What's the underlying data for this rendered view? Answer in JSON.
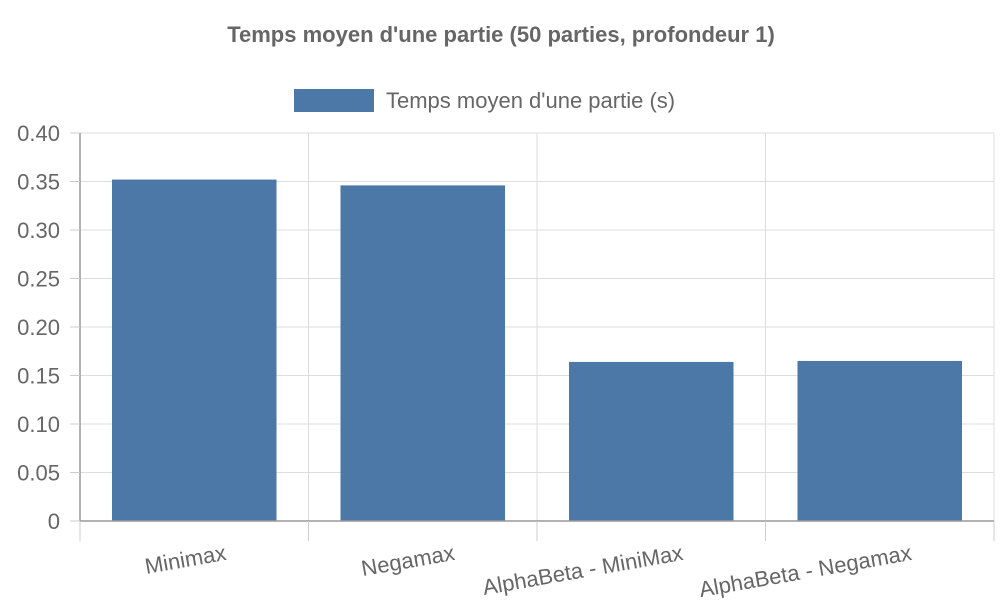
{
  "chart_data": {
    "type": "bar",
    "title": "Temps moyen d'une partie (50 parties, profondeur 1)",
    "categories": [
      "Minimax",
      "Negamax",
      "AlphaBeta - MiniMax",
      "AlphaBeta - Negamax"
    ],
    "series": [
      {
        "name": "Temps moyen d'une partie (s)",
        "values": [
          0.352,
          0.346,
          0.164,
          0.165
        ],
        "color": "#4c78a8"
      }
    ],
    "y_ticks": [
      "0",
      "0.05",
      "0.10",
      "0.15",
      "0.20",
      "0.25",
      "0.30",
      "0.35",
      "0.40"
    ],
    "ylim": [
      0,
      0.4
    ],
    "grid": true,
    "legend_position": "top-center"
  }
}
